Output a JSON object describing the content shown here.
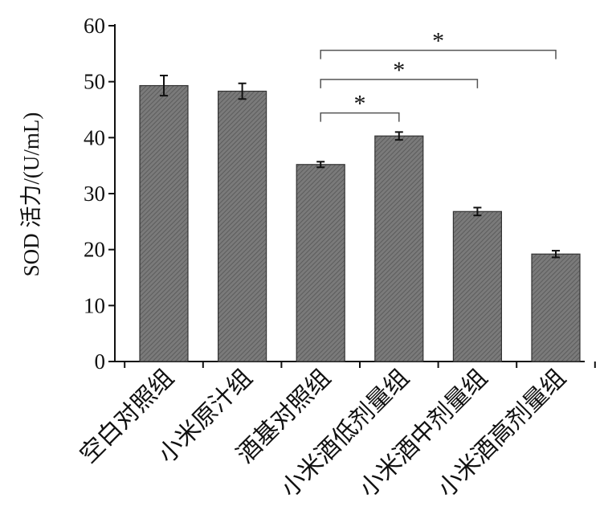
{
  "chart_data": {
    "type": "bar",
    "ylabel": "SOD 活力/(U/mL)",
    "ylim": [
      0,
      60
    ],
    "yticks": [
      0,
      10,
      20,
      30,
      40,
      50,
      60
    ],
    "categories": [
      "空白对照组",
      "小米原汁组",
      "酒基对照组",
      "小米酒低剂量组",
      "小米酒中剂量组",
      "小米酒高剂量组"
    ],
    "values": [
      49.3,
      48.3,
      35.2,
      40.3,
      26.8,
      19.2
    ],
    "errors": [
      1.8,
      1.4,
      0.5,
      0.7,
      0.7,
      0.6
    ],
    "bar_color": "#6e6e6e",
    "significance": [
      {
        "from": 2,
        "to": 3,
        "label": "*",
        "level": 44.4
      },
      {
        "from": 2,
        "to": 4,
        "label": "*",
        "level": 50.4
      },
      {
        "from": 2,
        "to": 5,
        "label": "*",
        "level": 55.6
      }
    ]
  }
}
